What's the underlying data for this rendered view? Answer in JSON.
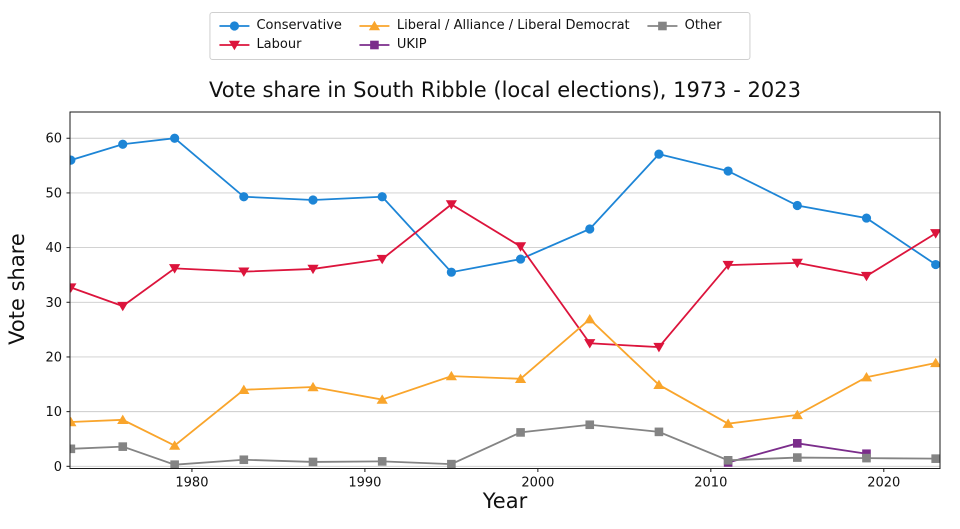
{
  "figure": {
    "title": "Vote share in South Ribble (local elections), 1973 - 2023",
    "xlabel": "Year",
    "ylabel": "Vote share"
  },
  "chart_data": {
    "type": "line",
    "title": "Vote share in South Ribble (local elections), 1973 - 2023",
    "xlabel": "Year",
    "ylabel": "Vote share",
    "grid": "horizontal",
    "legend_position": "top-center-outside",
    "x": [
      1973,
      1976,
      1979,
      1983,
      1987,
      1991,
      1995,
      1999,
      2003,
      2007,
      2011,
      2015,
      2019,
      2023
    ],
    "x_ticks": [
      1980,
      1990,
      2000,
      2010,
      2020
    ],
    "y_ticks": [
      0,
      10,
      20,
      30,
      40,
      50,
      60
    ],
    "xlim": [
      1972.95,
      2023.25
    ],
    "ylim": [
      -0.4,
      64.8
    ],
    "series": [
      {
        "name": "Conservative",
        "color": "#1d85d6",
        "marker": "circle",
        "values": [
          56.0,
          58.9,
          60.0,
          49.3,
          48.7,
          49.3,
          35.5,
          37.9,
          43.4,
          57.1,
          54.0,
          47.7,
          45.4,
          36.9
        ]
      },
      {
        "name": "Labour",
        "color": "#dc143c",
        "marker": "triangle-down",
        "values": [
          32.7,
          29.3,
          36.2,
          35.6,
          36.1,
          37.9,
          47.9,
          40.2,
          22.5,
          21.8,
          36.8,
          37.2,
          34.8,
          42.6
        ]
      },
      {
        "name": "Liberal / Alliance / Liberal Democrat",
        "color": "#f9a52c",
        "marker": "triangle-up",
        "values": [
          8.1,
          8.5,
          3.8,
          14.0,
          14.5,
          12.2,
          16.5,
          16.0,
          26.9,
          14.9,
          7.8,
          9.4,
          16.3,
          18.9
        ]
      },
      {
        "name": "UKIP",
        "color": "#7b2d8b",
        "marker": "square",
        "values": [
          null,
          null,
          null,
          null,
          null,
          null,
          null,
          null,
          null,
          null,
          0.7,
          4.2,
          2.3,
          null
        ]
      },
      {
        "name": "Other",
        "color": "#848484",
        "marker": "square",
        "values": [
          3.2,
          3.6,
          0.3,
          1.2,
          0.8,
          0.9,
          0.4,
          6.2,
          7.6,
          6.3,
          1.1,
          1.6,
          1.5,
          1.4
        ]
      }
    ]
  }
}
